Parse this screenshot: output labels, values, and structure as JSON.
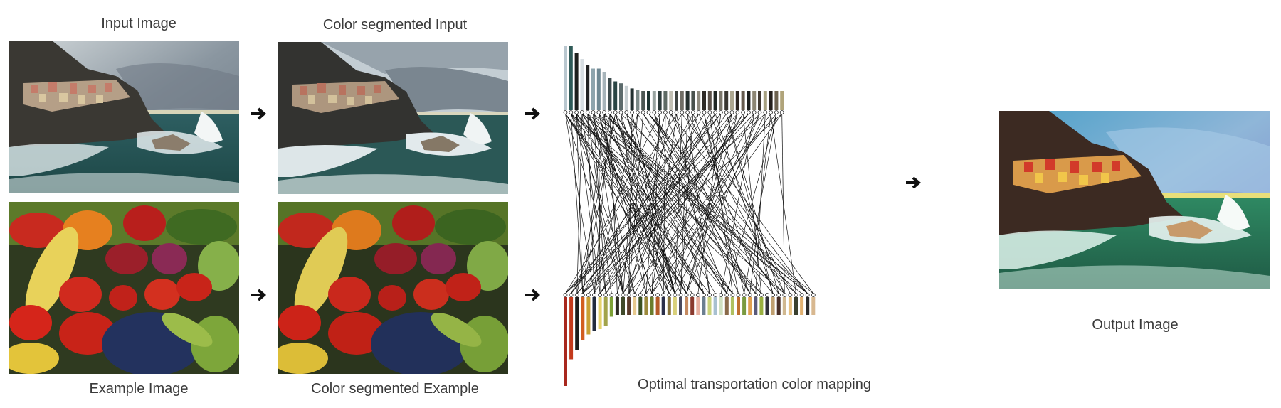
{
  "labels": {
    "input_image": "Input Image",
    "color_segmented_input": "Color segmented Input",
    "example_image": "Example Image",
    "color_segmented_example": "Color segmented Example",
    "mapping": "Optimal transportation color mapping",
    "output_image": "Output Image"
  },
  "colors": {
    "sky": "#9aa7b3",
    "sea": "#2f6e6a",
    "rock": "#3b3b36",
    "red_veg": "#c4271d",
    "green_veg": "#6c9a2a",
    "yellow_veg": "#e6c93a",
    "blue_veg": "#25355f"
  },
  "palettes": {
    "input_colors": [
      "#b9c7cf",
      "#2f5a57",
      "#1e1f1c",
      "#d8dee2",
      "#222222",
      "#8ea4ad",
      "#6f8893",
      "#a7b4ba",
      "#3c4a4c",
      "#2a4544",
      "#5c6b6c",
      "#c7cfd2",
      "#223030",
      "#7b8a88",
      "#4d5754",
      "#1d3331",
      "#98a3a0",
      "#2b3a39",
      "#5e6a64",
      "#c2c0b4",
      "#3e4340",
      "#716e66",
      "#26302e",
      "#4a524e",
      "#8f8b7f",
      "#2e2a26",
      "#5a5048",
      "#1f2624",
      "#7a756a",
      "#383530",
      "#ada790",
      "#2c2520",
      "#655a4e",
      "#1c1e1d",
      "#8d8674",
      "#403830",
      "#a6a080",
      "#241f1c",
      "#6d6250",
      "#b0a47a"
    ],
    "example_colors": [
      "#a8281e",
      "#c33a1c",
      "#1c1c1c",
      "#d25d1f",
      "#c8a034",
      "#222b3d",
      "#e6d36c",
      "#a2a34a",
      "#7da136",
      "#2c2a22",
      "#404a2a",
      "#5a3a2a",
      "#e7c98e",
      "#3b5122",
      "#9d8a3c",
      "#6a7d2d",
      "#b55a28",
      "#2a2f4a",
      "#86733a",
      "#d9d07a",
      "#4a4a5e",
      "#c58a60",
      "#8a3a2e",
      "#e8b0a0",
      "#6b7f90",
      "#c9d27a",
      "#a8c0d0",
      "#d0e0c0",
      "#8a6a4a",
      "#b0c060",
      "#c07030",
      "#7a9a40",
      "#e0a050",
      "#5a5a7a",
      "#9ab040",
      "#30303a",
      "#c0a070",
      "#4a3028",
      "#d0b890",
      "#e6c080",
      "#3a4030",
      "#e0b070",
      "#2a2a2a",
      "#d8b890"
    ],
    "input_heights": [
      1.0,
      1.0,
      0.9,
      0.8,
      0.7,
      0.65,
      0.65,
      0.6,
      0.5,
      0.45,
      0.42,
      0.38,
      0.34,
      0.32,
      0.3,
      0.3,
      0.3,
      0.3,
      0.3,
      0.3,
      0.3,
      0.3,
      0.3,
      0.3,
      0.3,
      0.3,
      0.3,
      0.3,
      0.3,
      0.3,
      0.3,
      0.3,
      0.3,
      0.3,
      0.3,
      0.3,
      0.3,
      0.3,
      0.3,
      0.3
    ],
    "example_heights": [
      1.0,
      0.7,
      0.6,
      0.48,
      0.42,
      0.38,
      0.36,
      0.32,
      0.22,
      0.2,
      0.2,
      0.2,
      0.2,
      0.2,
      0.2,
      0.2,
      0.2,
      0.2,
      0.2,
      0.2,
      0.2,
      0.2,
      0.2,
      0.2,
      0.2,
      0.2,
      0.2,
      0.2,
      0.2,
      0.2,
      0.2,
      0.2,
      0.2,
      0.2,
      0.2,
      0.2,
      0.2,
      0.2,
      0.2,
      0.2,
      0.2,
      0.2,
      0.2,
      0.2
    ]
  }
}
